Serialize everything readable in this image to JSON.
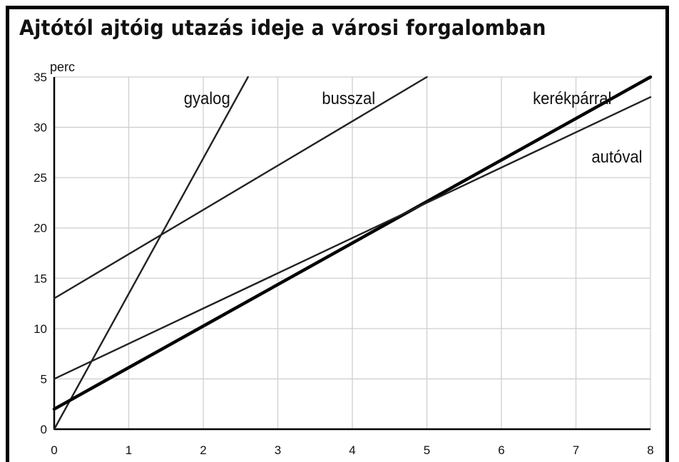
{
  "title": "Ajtótól ajtóig utazás ideje a városi forgalomban",
  "chart_data": {
    "type": "line",
    "title": "Ajtótól ajtóig utazás ideje a városi forgalomban",
    "xlabel": "",
    "ylabel": "perc",
    "xlim": [
      0,
      8
    ],
    "ylim": [
      0,
      35
    ],
    "x_ticks": [
      "0",
      "1",
      "2",
      "3",
      "4",
      "5",
      "6",
      "7",
      "8"
    ],
    "y_ticks": [
      "0",
      "5",
      "10",
      "15",
      "20",
      "25",
      "30",
      "35"
    ],
    "grid": true,
    "series": [
      {
        "name": "gyalog",
        "x": [
          0,
          2.6
        ],
        "y": [
          0,
          35
        ],
        "color": "#222222",
        "bold": false
      },
      {
        "name": "busszal",
        "x": [
          0,
          5
        ],
        "y": [
          13,
          35
        ],
        "color": "#222222",
        "bold": false
      },
      {
        "name": "kerékpárral",
        "x": [
          0,
          8
        ],
        "y": [
          2,
          35
        ],
        "color": "#000000",
        "bold": true
      },
      {
        "name": "autóval",
        "x": [
          0,
          8
        ],
        "y": [
          5,
          33
        ],
        "color": "#222222",
        "bold": false
      }
    ]
  }
}
